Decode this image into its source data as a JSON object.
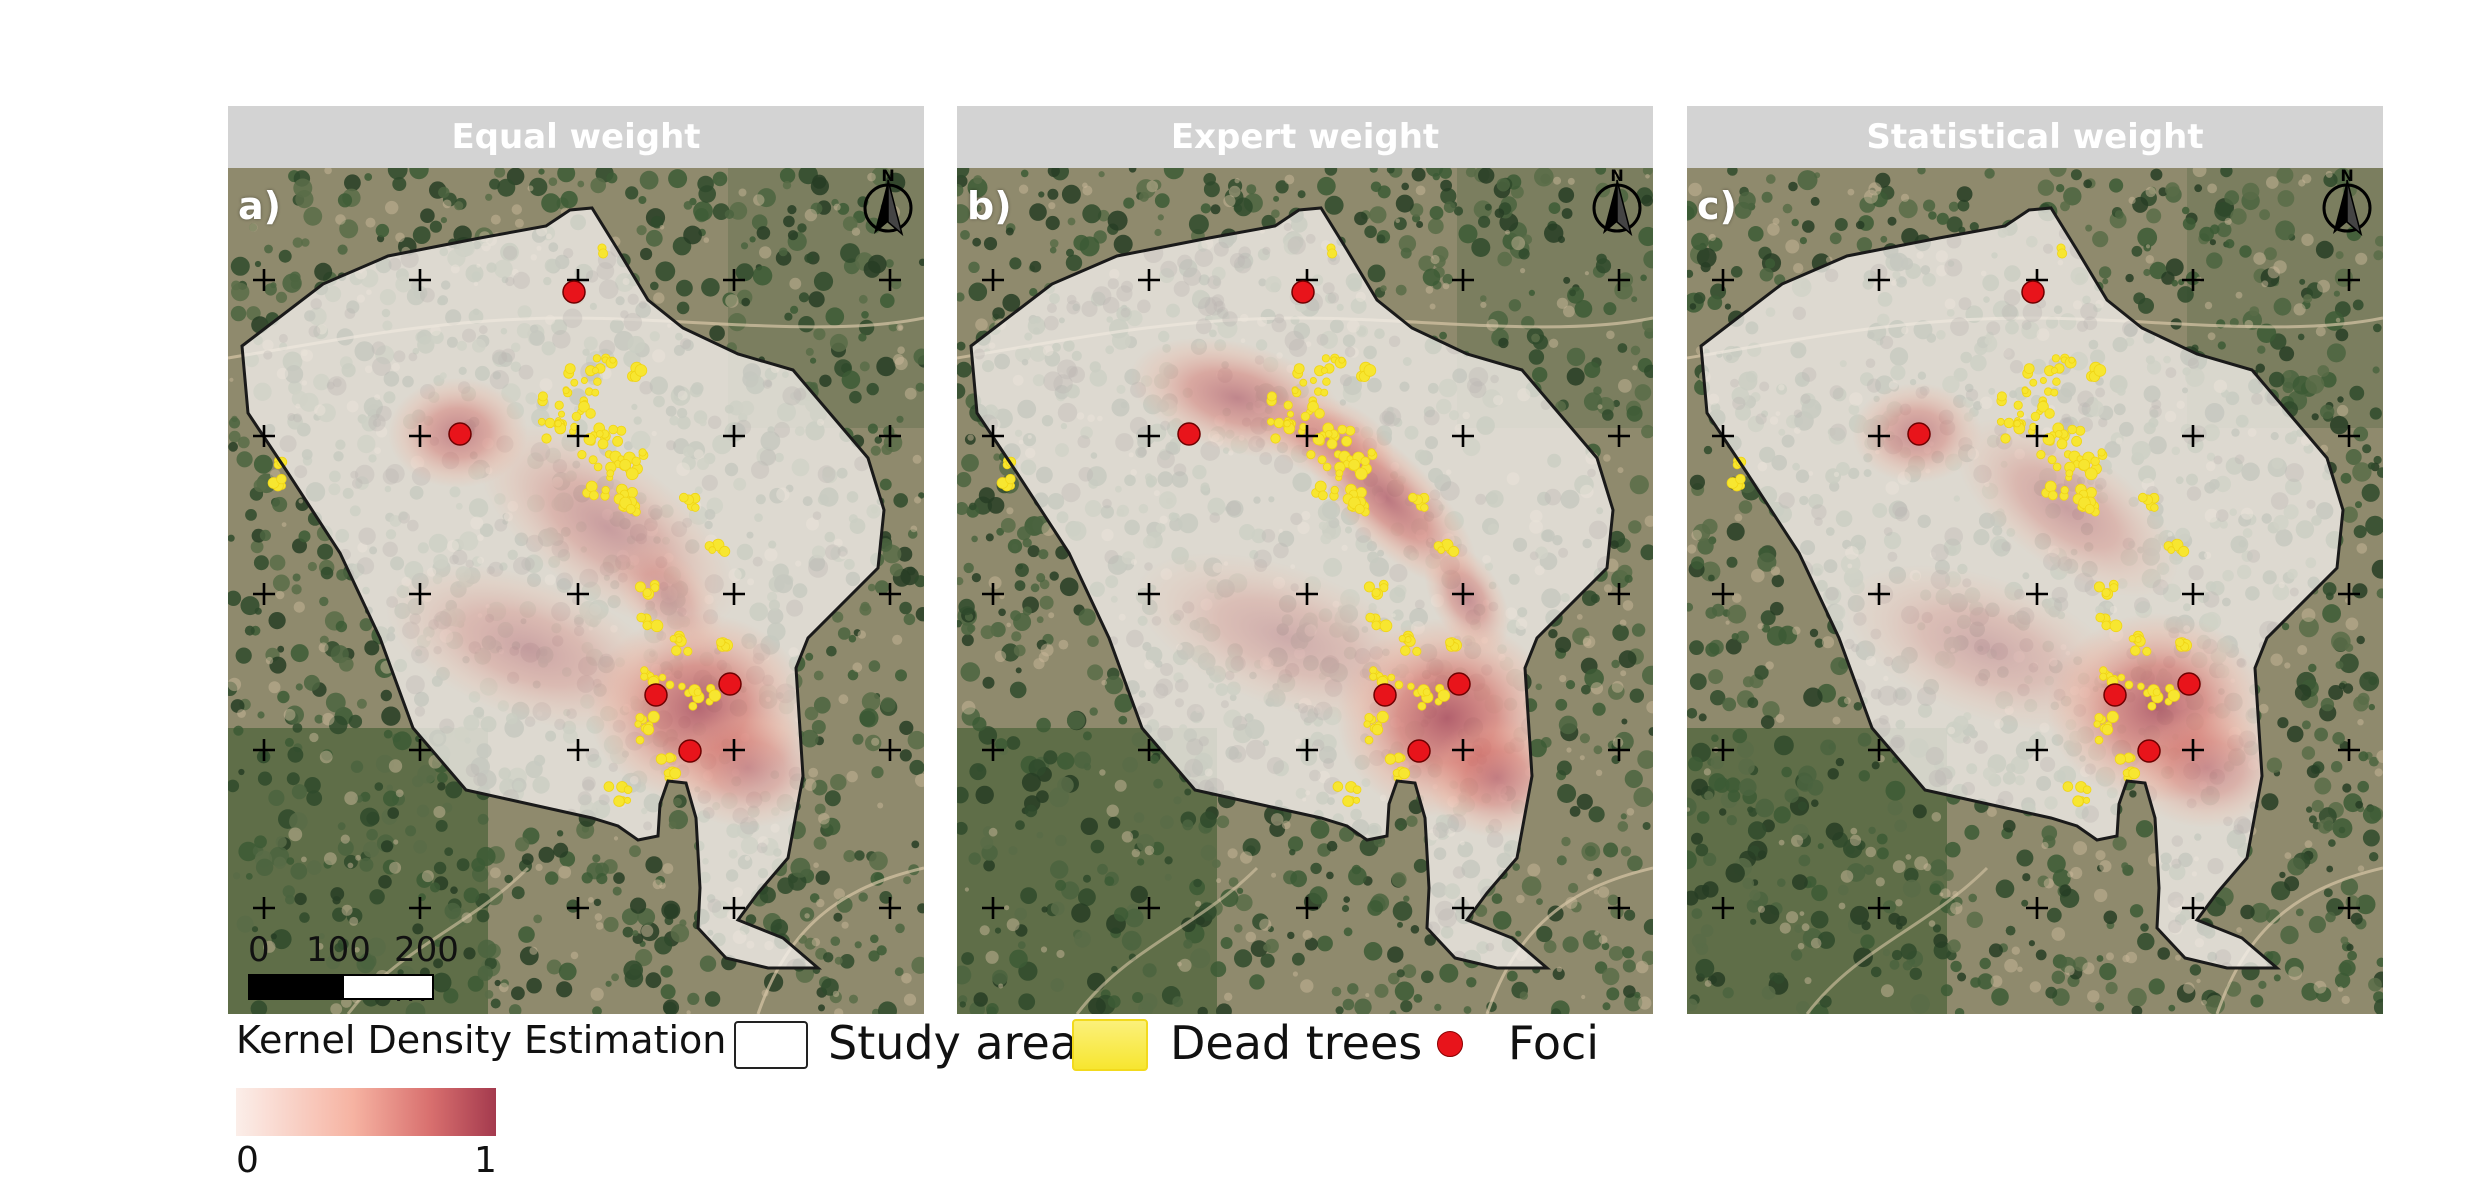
{
  "panels": [
    {
      "title": "Equal weight",
      "letter": "a)",
      "variant": "equal"
    },
    {
      "title": "Expert weight",
      "letter": "b)",
      "variant": "expert"
    },
    {
      "title": "Statistical weight",
      "letter": "c)",
      "variant": "statistical"
    }
  ],
  "north_arrow_label": "N",
  "scale_bar": {
    "labels": [
      "0",
      "100",
      "200 m"
    ]
  },
  "legend": {
    "kde_title": "Kernel Density Estimation",
    "study_area_label": "Study area",
    "dead_trees_label": "Dead trees",
    "foci_label": "Foci",
    "kde_min": "0",
    "kde_max": "1"
  },
  "colors": {
    "header_bg": "#d3d3d3",
    "kde_low": "#fbeee9",
    "kde_mid": "#f3a48f",
    "kde_high": "#a43a4e",
    "dead_trees": "#f7e630",
    "foci": "#e8141b",
    "boundary": "#1a1a1a"
  }
}
